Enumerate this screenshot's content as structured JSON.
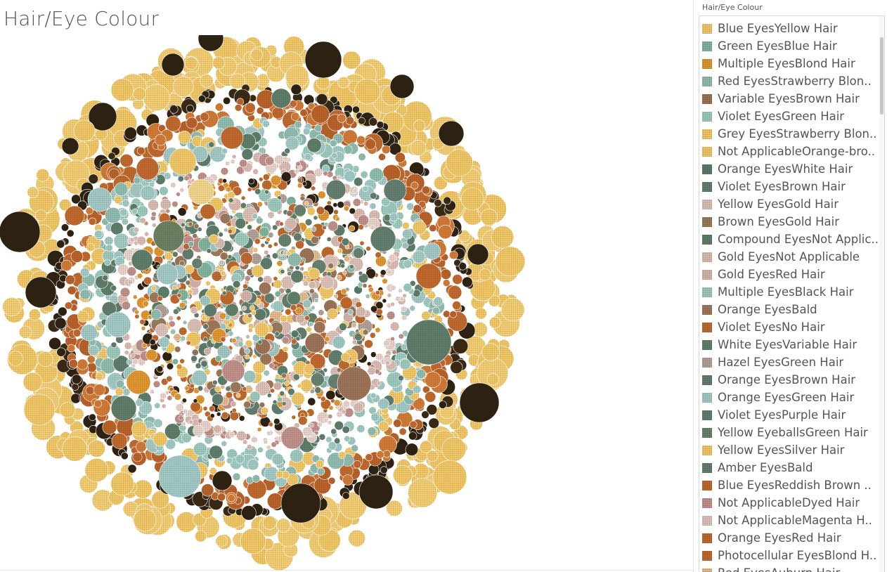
{
  "title": "Hair/Eye Colour",
  "legend": {
    "header": "Hair/Eye Colour",
    "items": [
      {
        "label": "Blue EyesYellow Hair",
        "color": "#f0c766"
      },
      {
        "label": "Green EyesBlue Hair",
        "color": "#7fb49b"
      },
      {
        "label": "Multiple EyesBlond Hair",
        "color": "#e0962f"
      },
      {
        "label": "Red EyesStrawberry Blon..",
        "color": "#8fbcae"
      },
      {
        "label": "Variable EyesBrown Hair",
        "color": "#9b7357"
      },
      {
        "label": "Violet EyesGreen Hair",
        "color": "#9cc9bd"
      },
      {
        "label": "Grey EyesStrawberry Blon..",
        "color": "#f0c766"
      },
      {
        "label": "Not ApplicableOrange-bro..",
        "color": "#f0c766"
      },
      {
        "label": "Orange EyesWhite Hair",
        "color": "#5b7a67"
      },
      {
        "label": "Violet EyesBrown Hair",
        "color": "#637e6e"
      },
      {
        "label": "Yellow EyesGold Hair",
        "color": "#dbbfb5"
      },
      {
        "label": "Brown EyesGold Hair",
        "color": "#9b7a5c"
      },
      {
        "label": "Compound EyesNot Applic..",
        "color": "#5f7d6a"
      },
      {
        "label": "Gold EyesNot Applicable",
        "color": "#d9bab0"
      },
      {
        "label": "Gold EyesRed Hair",
        "color": "#d3b3a8"
      },
      {
        "label": "Multiple EyesBlack Hair",
        "color": "#a0c6c2"
      },
      {
        "label": "Orange EyesBald",
        "color": "#9e7858"
      },
      {
        "label": "Violet EyesNo Hair",
        "color": "#c0692e"
      },
      {
        "label": "White EyesVariable Hair",
        "color": "#5f8069"
      },
      {
        "label": "Hazel EyesGreen Hair",
        "color": "#b0a097"
      },
      {
        "label": "Orange EyesBrown Hair",
        "color": "#627e6c"
      },
      {
        "label": "Orange EyesGreen Hair",
        "color": "#a2c9c5"
      },
      {
        "label": "Violet EyesPurple Hair",
        "color": "#5d7f6c"
      },
      {
        "label": "Yellow EyeballsGreen Hair",
        "color": "#67826f"
      },
      {
        "label": "Yellow EyesSilver Hair",
        "color": "#f0c766"
      },
      {
        "label": "Amber EyesBald",
        "color": "#637e6e"
      },
      {
        "label": "Blue EyesReddish Brown ..",
        "color": "#c0692e"
      },
      {
        "label": "Not ApplicableDyed Hair",
        "color": "#c0908a"
      },
      {
        "label": "Not ApplicableMagenta H..",
        "color": "#ddc1b8"
      },
      {
        "label": "Orange EyesRed Hair",
        "color": "#c0692e"
      },
      {
        "label": "Photocellular EyesBlond H..",
        "color": "#bd6a30"
      },
      {
        "label": "Red EyesAuburn Hair",
        "color": "#e3b98a"
      }
    ]
  },
  "chart_data": {
    "type": "packed-bubble",
    "series": [
      {
        "name": "Blue EyesYellow Hair"
      },
      {
        "name": "Green EyesBlue Hair"
      },
      {
        "name": "Multiple EyesBlond Hair"
      },
      {
        "name": "Red EyesStrawberry Blon.."
      },
      {
        "name": "Variable EyesBrown Hair"
      },
      {
        "name": "Violet EyesGreen Hair"
      },
      {
        "name": "Grey EyesStrawberry Blon.."
      },
      {
        "name": "Not ApplicableOrange-bro.."
      },
      {
        "name": "Orange EyesWhite Hair"
      },
      {
        "name": "Violet EyesBrown Hair"
      },
      {
        "name": "Yellow EyesGold Hair"
      },
      {
        "name": "Brown EyesGold Hair"
      },
      {
        "name": "Compound EyesNot Applic.."
      },
      {
        "name": "Gold EyesNot Applicable"
      },
      {
        "name": "Gold EyesRed Hair"
      },
      {
        "name": "Multiple EyesBlack Hair"
      },
      {
        "name": "Orange EyesBald"
      },
      {
        "name": "Violet EyesNo Hair"
      },
      {
        "name": "White EyesVariable Hair"
      },
      {
        "name": "Hazel EyesGreen Hair"
      },
      {
        "name": "Orange EyesBrown Hair"
      },
      {
        "name": "Orange EyesGreen Hair"
      },
      {
        "name": "Violet EyesPurple Hair"
      },
      {
        "name": "Yellow EyeballsGreen Hair"
      },
      {
        "name": "Yellow EyesSilver Hair"
      },
      {
        "name": "Amber EyesBald"
      },
      {
        "name": "Blue EyesReddish Brown .."
      },
      {
        "name": "Not ApplicableDyed Hair"
      },
      {
        "name": "Not ApplicableMagenta H.."
      },
      {
        "name": "Orange EyesRed Hair"
      },
      {
        "name": "Photocellular EyesBlond H.."
      },
      {
        "name": "Red EyesAuburn Hair"
      }
    ],
    "ring_palette": [
      "#f0c766",
      "#2e2212",
      "#c0692e",
      "#a2c9c5",
      "#d9bab0",
      "#5f7d6a",
      "#f0c766",
      "#e0962f"
    ],
    "title": "Hair/Eye Colour"
  }
}
